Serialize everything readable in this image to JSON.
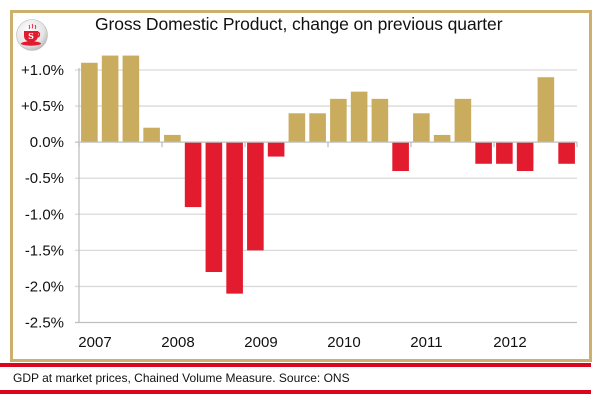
{
  "header": {
    "logo_icon": "tea-cup-s-logo",
    "logo_letter": "S",
    "title": "Gross Domestic Product, change on previous quarter"
  },
  "footer": {
    "source_note": "GDP at market prices, Chained Volume Measure. Source: ONS"
  },
  "colors": {
    "positive_bar": "#C9AC5E",
    "negative_bar": "#E31B2F",
    "frame_border": "#CDB06C",
    "rule_lines": "#D9061E",
    "gridline": "#D9D9D9"
  },
  "chart_data": {
    "type": "bar",
    "title": "Gross Domestic Product, change on previous quarter",
    "xlabel": "",
    "ylabel": "",
    "ylim": [
      -2.5,
      1.0
    ],
    "y_ticks": [
      1.0,
      0.5,
      0.0,
      -0.5,
      -1.0,
      -1.5,
      -2.0,
      -2.5
    ],
    "y_tick_labels": [
      "+1.0%",
      "+0.5%",
      "0.0%",
      "-0.5%",
      "-1.0%",
      "-1.5%",
      "-2.0%",
      "-2.5%"
    ],
    "x_tick_labels": [
      "2007",
      "2008",
      "2009",
      "2010",
      "2011",
      "2012"
    ],
    "grid": true,
    "legend": "none",
    "categories": [
      "2007 Q1",
      "2007 Q2",
      "2007 Q3",
      "2007 Q4",
      "2008 Q1",
      "2008 Q2",
      "2008 Q3",
      "2008 Q4",
      "2009 Q1",
      "2009 Q2",
      "2009 Q3",
      "2009 Q4",
      "2010 Q1",
      "2010 Q2",
      "2010 Q3",
      "2010 Q4",
      "2011 Q1",
      "2011 Q2",
      "2011 Q3",
      "2011 Q4",
      "2012 Q1",
      "2012 Q2",
      "2012 Q3",
      "2012 Q4"
    ],
    "values": [
      1.1,
      1.2,
      1.2,
      0.2,
      0.1,
      -0.9,
      -1.8,
      -2.1,
      -1.5,
      -0.2,
      0.4,
      0.4,
      0.6,
      0.7,
      0.6,
      -0.4,
      0.4,
      0.1,
      0.6,
      -0.3,
      -0.3,
      -0.4,
      0.9,
      -0.3
    ],
    "unit": "%"
  }
}
